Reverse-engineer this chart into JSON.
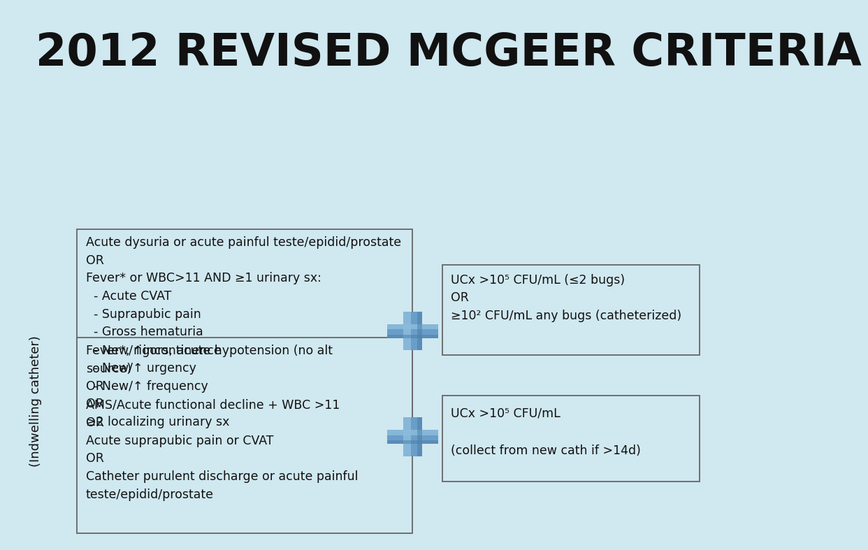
{
  "title": "2012 REVISED MCGEER CRITERIA",
  "bg_color": "#d0e8f0",
  "title_color": "#111111",
  "box_bg": "#d0e8f0",
  "box_edge": "#666666",
  "box1_text": "Acute dysuria or acute painful teste/epidid/prostate\nOR\nFever* or WBC>11 AND ≥1 urinary sx:\n  - Acute CVAT\n  - Suprapubic pain\n  - Gross hematuria\n  - New/↑incontinence\n  - New/↑ urgency\n  - New/↑ frequency\nOR\n≥2 localizing urinary sx",
  "box2_text": "UCx >10⁵ CFU/mL (≤2 bugs)\nOR\n≥10² CFU/mL any bugs (catheterized)",
  "box3_text": "Fever*, rigors, acute hypotension (no alt\nsource)\nOR\nAMS/Acute functional decline + WBC >11\nOR\nAcute suprapubic pain or CVAT\nOR\nCatheter purulent discharge or acute painful\nteste/epidid/prostate",
  "box4_text": "UCx >10⁵ CFU/mL\n\n(collect from new cath if >14d)",
  "sidebar_text": "(Indwelling catheter)",
  "plus_color_mid": "#6a9ec8",
  "plus_color_light": "#8cbcdc",
  "plus_color_dark": "#4a7eaa",
  "title_fontsize": 46,
  "body_fontsize": 12.5
}
